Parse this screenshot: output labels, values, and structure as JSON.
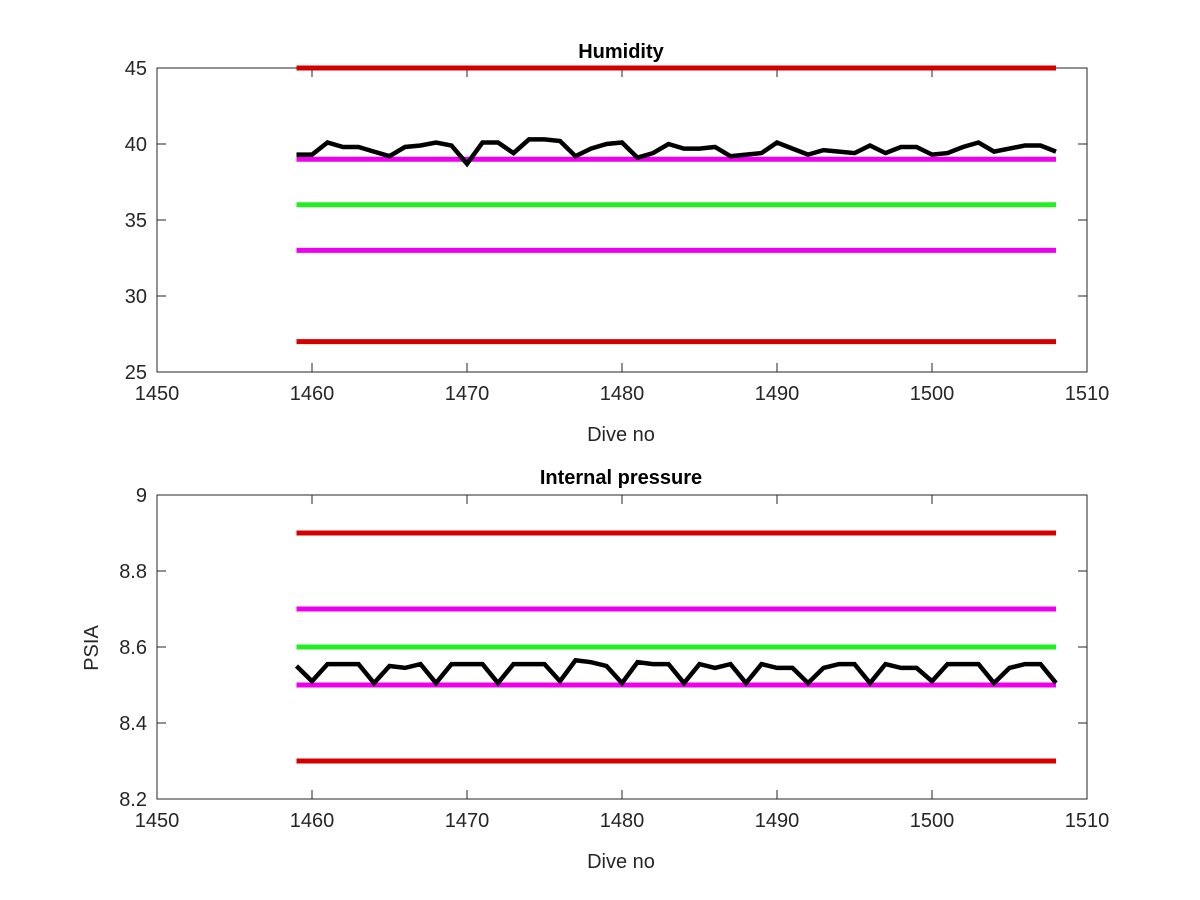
{
  "chart_data": [
    {
      "type": "line",
      "title": "Humidity",
      "xlabel": "Dive no",
      "ylabel": "",
      "xlim": [
        1450,
        1510
      ],
      "ylim": [
        25,
        45
      ],
      "xticks": [
        1450,
        1460,
        1470,
        1480,
        1490,
        1500,
        1510
      ],
      "yticks": [
        25,
        30,
        35,
        40,
        45
      ],
      "grid": false,
      "reference_lines": [
        {
          "y": 45,
          "x": [
            1459,
            1508
          ],
          "color": "#d40000"
        },
        {
          "y": 39,
          "x": [
            1459,
            1508
          ],
          "color": "#ee00ee"
        },
        {
          "y": 36,
          "x": [
            1459,
            1508
          ],
          "color": "#22ee22"
        },
        {
          "y": 33,
          "x": [
            1459,
            1508
          ],
          "color": "#ee00ee"
        },
        {
          "y": 27,
          "x": [
            1459,
            1508
          ],
          "color": "#d40000"
        }
      ],
      "series": [
        {
          "color": "#000000",
          "x": [
            1459,
            1460,
            1461,
            1462,
            1463,
            1464,
            1465,
            1466,
            1467,
            1468,
            1469,
            1470,
            1471,
            1472,
            1473,
            1474,
            1475,
            1476,
            1477,
            1478,
            1479,
            1480,
            1481,
            1482,
            1483,
            1484,
            1485,
            1486,
            1487,
            1488,
            1489,
            1490,
            1491,
            1492,
            1493,
            1494,
            1495,
            1496,
            1497,
            1498,
            1499,
            1500,
            1501,
            1502,
            1503,
            1504,
            1505,
            1506,
            1507,
            1508
          ],
          "y": [
            39.3,
            39.3,
            40.1,
            39.8,
            39.8,
            39.5,
            39.2,
            39.8,
            39.9,
            40.1,
            39.9,
            38.7,
            40.1,
            40.1,
            39.4,
            40.3,
            40.3,
            40.2,
            39.2,
            39.7,
            40.0,
            40.1,
            39.1,
            39.4,
            40.0,
            39.7,
            39.7,
            39.8,
            39.2,
            39.3,
            39.4,
            40.1,
            39.7,
            39.3,
            39.6,
            39.5,
            39.4,
            39.9,
            39.4,
            39.8,
            39.8,
            39.3,
            39.4,
            39.8,
            40.1,
            39.5,
            39.7,
            39.9,
            39.9,
            39.5
          ]
        }
      ]
    },
    {
      "type": "line",
      "title": "Internal pressure",
      "xlabel": "Dive no",
      "ylabel": "PSIA",
      "xlim": [
        1450,
        1510
      ],
      "ylim": [
        8.2,
        9
      ],
      "xticks": [
        1450,
        1460,
        1470,
        1480,
        1490,
        1500,
        1510
      ],
      "yticks": [
        8.2,
        8.4,
        8.6,
        8.8,
        9
      ],
      "grid": false,
      "reference_lines": [
        {
          "y": 8.9,
          "x": [
            1459,
            1508
          ],
          "color": "#d40000"
        },
        {
          "y": 8.7,
          "x": [
            1459,
            1508
          ],
          "color": "#ee00ee"
        },
        {
          "y": 8.6,
          "x": [
            1459,
            1508
          ],
          "color": "#22ee22"
        },
        {
          "y": 8.5,
          "x": [
            1459,
            1508
          ],
          "color": "#ee00ee"
        },
        {
          "y": 8.3,
          "x": [
            1459,
            1508
          ],
          "color": "#d40000"
        }
      ],
      "series": [
        {
          "color": "#000000",
          "x": [
            1459,
            1460,
            1461,
            1462,
            1463,
            1464,
            1465,
            1466,
            1467,
            1468,
            1469,
            1470,
            1471,
            1472,
            1473,
            1474,
            1475,
            1476,
            1477,
            1478,
            1479,
            1480,
            1481,
            1482,
            1483,
            1484,
            1485,
            1486,
            1487,
            1488,
            1489,
            1490,
            1491,
            1492,
            1493,
            1494,
            1495,
            1496,
            1497,
            1498,
            1499,
            1500,
            1501,
            1502,
            1503,
            1504,
            1505,
            1506,
            1507,
            1508
          ],
          "y": [
            8.55,
            8.51,
            8.555,
            8.555,
            8.555,
            8.505,
            8.55,
            8.545,
            8.555,
            8.505,
            8.555,
            8.555,
            8.555,
            8.505,
            8.555,
            8.555,
            8.555,
            8.51,
            8.565,
            8.56,
            8.55,
            8.505,
            8.56,
            8.555,
            8.555,
            8.505,
            8.555,
            8.545,
            8.555,
            8.505,
            8.555,
            8.545,
            8.545,
            8.505,
            8.545,
            8.555,
            8.555,
            8.505,
            8.555,
            8.545,
            8.545,
            8.51,
            8.555,
            8.555,
            8.555,
            8.505,
            8.545,
            8.555,
            8.555,
            8.505
          ]
        }
      ]
    }
  ]
}
